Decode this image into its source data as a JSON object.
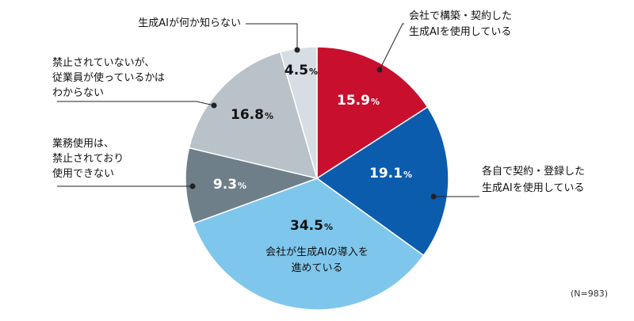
{
  "chart_data": {
    "type": "pie",
    "start_angle_deg": 0,
    "direction": "clockwise",
    "slices": [
      {
        "label_lines": [
          "会社で構築・契約した",
          "生成AIを使用している"
        ],
        "value": 15.9,
        "value_text": "15.9",
        "color": "#c8102e",
        "value_color": "#ffffff"
      },
      {
        "label_lines": [
          "各自で契約・登録した",
          "生成AIを使用している"
        ],
        "value": 19.1,
        "value_text": "19.1",
        "color": "#0b5cad",
        "value_color": "#ffffff"
      },
      {
        "label_lines": [
          "会社が生成AIの導入を",
          "進めている"
        ],
        "value": 34.5,
        "value_text": "34.5",
        "color": "#7fc6ec",
        "value_color": "#111111"
      },
      {
        "label_lines": [
          "業務使用は、",
          "禁止されており",
          "使用できない"
        ],
        "value": 9.3,
        "value_text": "9.3",
        "color": "#6f7f8a",
        "value_color": "#ffffff"
      },
      {
        "label_lines": [
          "禁止されていないが、",
          "従業員が使っているかは",
          "わからない"
        ],
        "value": 16.8,
        "value_text": "16.8",
        "color": "#b9c1c9",
        "value_color": "#111111"
      },
      {
        "label_lines": [
          "生成AIが何か知らない"
        ],
        "value": 4.5,
        "value_text": "4.5",
        "color": "#d6dee4",
        "value_color": "#111111"
      }
    ],
    "unit": "%",
    "note": "(N=983)"
  }
}
